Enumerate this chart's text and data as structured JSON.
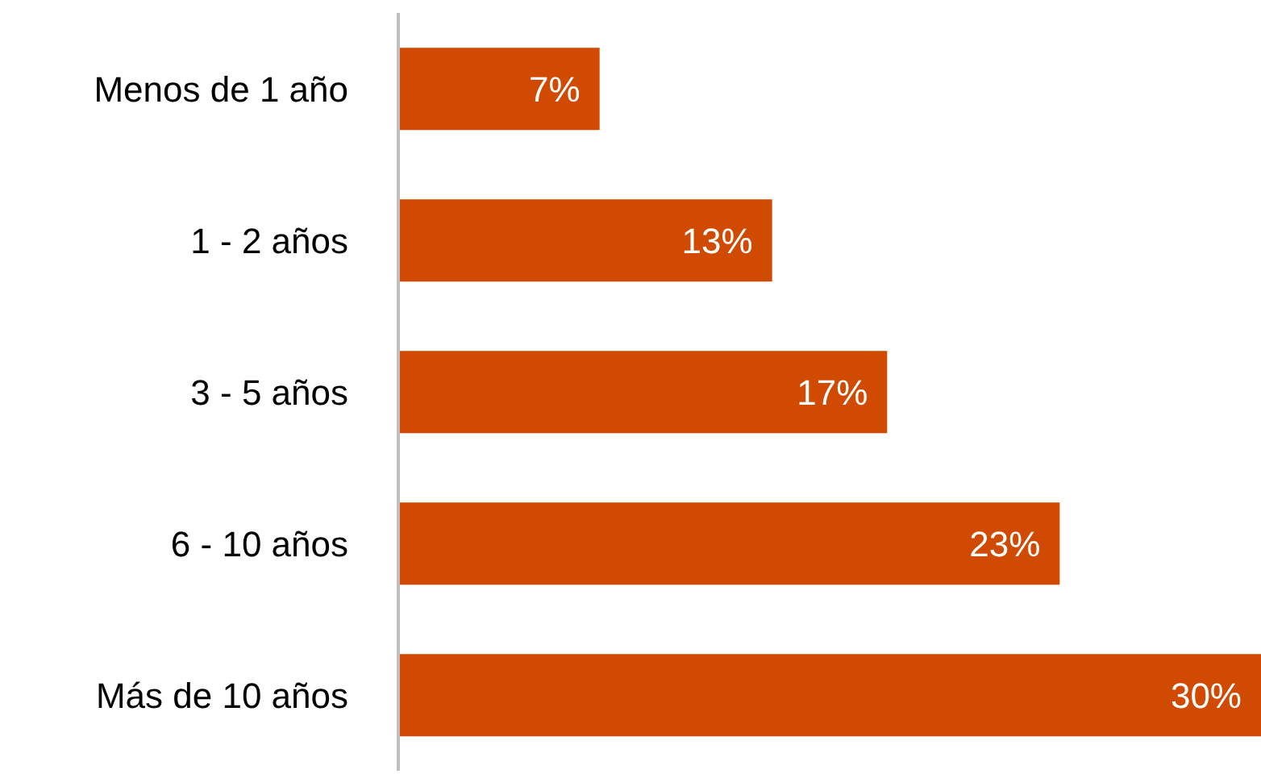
{
  "chart_data": {
    "type": "bar",
    "orientation": "horizontal",
    "categories": [
      "Menos de 1 año",
      "1 - 2 años",
      "3 - 5 años",
      "6 - 10 años",
      "Más de 10 años"
    ],
    "values": [
      7,
      13,
      17,
      23,
      30
    ],
    "value_labels": [
      "7%",
      "13%",
      "17%",
      "23%",
      "30%"
    ],
    "color": "#d04a02"
  }
}
